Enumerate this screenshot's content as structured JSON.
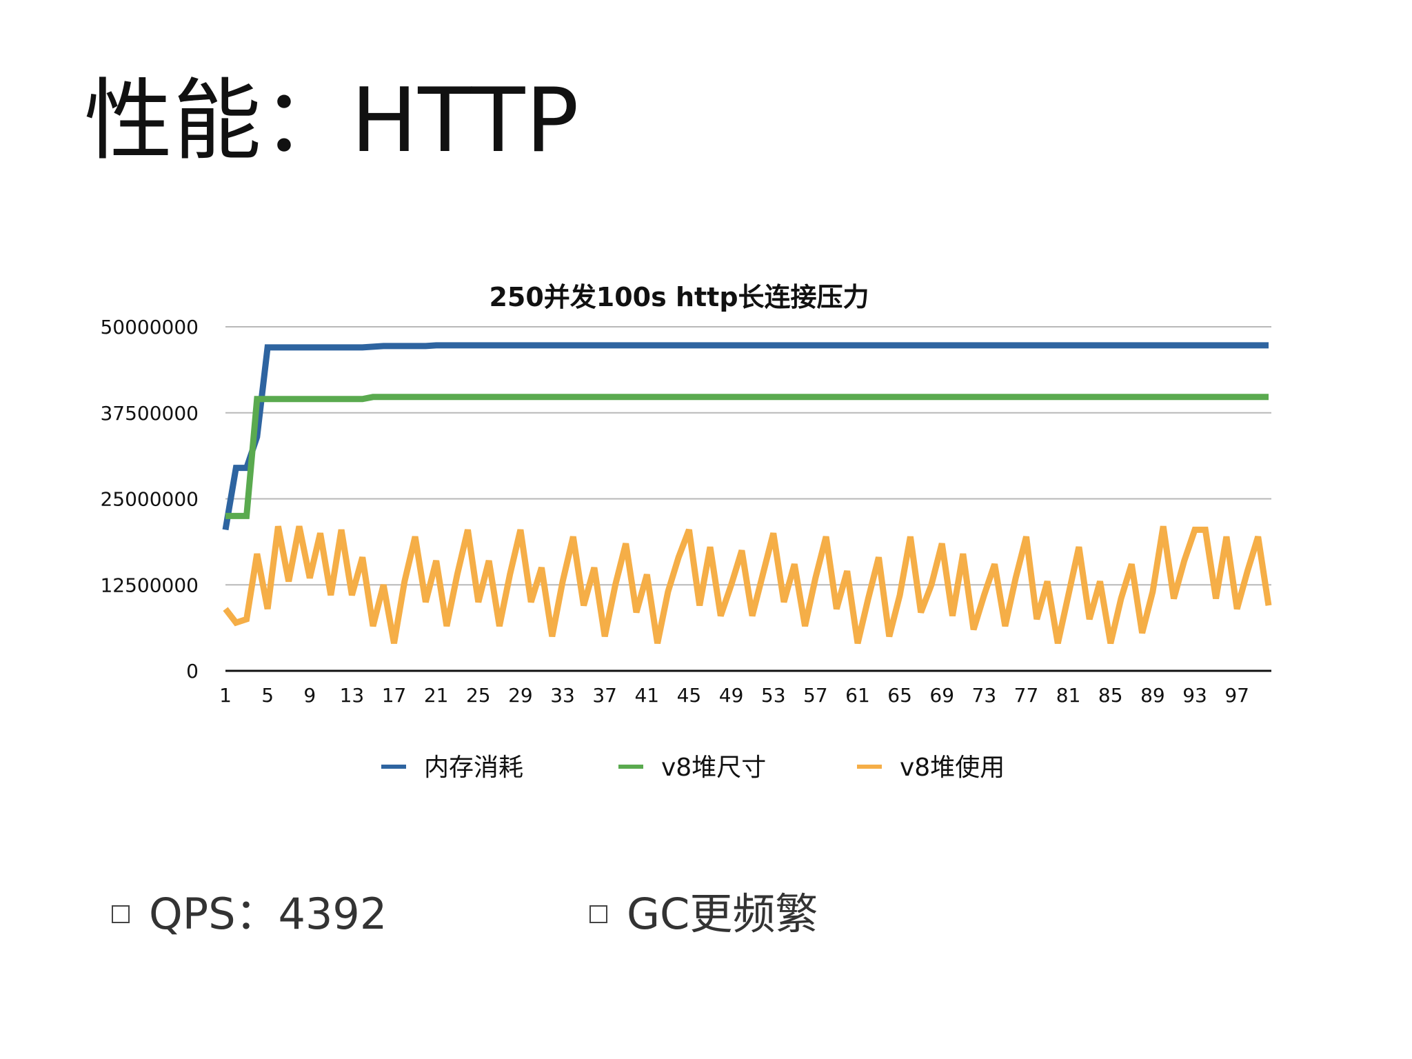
{
  "slide": {
    "title": "性能：HTTP",
    "bullets": [
      {
        "text": "QPS：4392"
      },
      {
        "text": "GC更频繁"
      }
    ]
  },
  "chart_data": {
    "type": "line",
    "title": "250并发100s http长连接压力",
    "xlabel": "",
    "ylabel": "",
    "ylim": [
      0,
      50000000
    ],
    "yticks": [
      0,
      12500000,
      25000000,
      37500000,
      50000000
    ],
    "ytick_labels": [
      "0",
      "12500000",
      "25000000",
      "37500000",
      "50000000"
    ],
    "xtick_labels": [
      "1",
      "5",
      "9",
      "13",
      "17",
      "21",
      "25",
      "29",
      "33",
      "37",
      "41",
      "45",
      "49",
      "53",
      "57",
      "61",
      "65",
      "69",
      "73",
      "77",
      "81",
      "85",
      "89",
      "93",
      "97"
    ],
    "grid": true,
    "legend_position": "bottom",
    "x": [
      1,
      2,
      3,
      4,
      5,
      6,
      7,
      8,
      9,
      10,
      11,
      12,
      13,
      14,
      15,
      16,
      17,
      18,
      19,
      20,
      21,
      22,
      23,
      24,
      25,
      26,
      27,
      28,
      29,
      30,
      31,
      32,
      33,
      34,
      35,
      36,
      37,
      38,
      39,
      40,
      41,
      42,
      43,
      44,
      45,
      46,
      47,
      48,
      49,
      50,
      51,
      52,
      53,
      54,
      55,
      56,
      57,
      58,
      59,
      60,
      61,
      62,
      63,
      64,
      65,
      66,
      67,
      68,
      69,
      70,
      71,
      72,
      73,
      74,
      75,
      76,
      77,
      78,
      79,
      80,
      81,
      82,
      83,
      84,
      85,
      86,
      87,
      88,
      89,
      90,
      91,
      92,
      93,
      93,
      94,
      95,
      96,
      97,
      98,
      99,
      100
    ],
    "series": [
      {
        "name": "内存消耗",
        "color": "#2e64a0",
        "values": [
          20500000,
          29500000,
          29500000,
          34000000,
          47000000,
          47000000,
          47000000,
          47000000,
          47000000,
          47000000,
          47000000,
          47000000,
          47000000,
          47000000,
          47100000,
          47200000,
          47200000,
          47200000,
          47200000,
          47200000,
          47300000,
          47300000,
          47300000,
          47300000,
          47300000,
          47300000,
          47300000,
          47300000,
          47300000,
          47300000,
          47300000,
          47300000,
          47300000,
          47300000,
          47300000,
          47300000,
          47300000,
          47300000,
          47300000,
          47300000,
          47300000,
          47300000,
          47300000,
          47300000,
          47300000,
          47300000,
          47300000,
          47300000,
          47300000,
          47300000,
          47300000,
          47300000,
          47300000,
          47300000,
          47300000,
          47300000,
          47300000,
          47300000,
          47300000,
          47300000,
          47300000,
          47300000,
          47300000,
          47300000,
          47300000,
          47300000,
          47300000,
          47300000,
          47300000,
          47300000,
          47300000,
          47300000,
          47300000,
          47300000,
          47300000,
          47300000,
          47300000,
          47300000,
          47300000,
          47300000,
          47300000,
          47300000,
          47300000,
          47300000,
          47300000,
          47300000,
          47300000,
          47300000,
          47300000,
          47300000,
          47300000,
          47300000,
          47300000,
          47300000,
          47300000,
          47300000,
          47300000,
          47300000,
          47300000,
          47300000,
          47300000
        ]
      },
      {
        "name": "v8堆尺寸",
        "color": "#5aaa4f",
        "values": [
          22500000,
          22500000,
          22500000,
          39500000,
          39500000,
          39500000,
          39500000,
          39500000,
          39500000,
          39500000,
          39500000,
          39500000,
          39500000,
          39500000,
          39800000,
          39800000,
          39800000,
          39800000,
          39800000,
          39800000,
          39800000,
          39800000,
          39800000,
          39800000,
          39800000,
          39800000,
          39800000,
          39800000,
          39800000,
          39800000,
          39800000,
          39800000,
          39800000,
          39800000,
          39800000,
          39800000,
          39800000,
          39800000,
          39800000,
          39800000,
          39800000,
          39800000,
          39800000,
          39800000,
          39800000,
          39800000,
          39800000,
          39800000,
          39800000,
          39800000,
          39800000,
          39800000,
          39800000,
          39800000,
          39800000,
          39800000,
          39800000,
          39800000,
          39800000,
          39800000,
          39800000,
          39800000,
          39800000,
          39800000,
          39800000,
          39800000,
          39800000,
          39800000,
          39800000,
          39800000,
          39800000,
          39800000,
          39800000,
          39800000,
          39800000,
          39800000,
          39800000,
          39800000,
          39800000,
          39800000,
          39800000,
          39800000,
          39800000,
          39800000,
          39800000,
          39800000,
          39800000,
          39800000,
          39800000,
          39800000,
          39800000,
          39800000,
          39800000,
          39800000,
          39800000,
          39800000,
          39800000,
          39800000,
          39800000,
          39800000,
          39800000
        ]
      },
      {
        "name": "v8堆使用",
        "color": "#f5ae47",
        "values": [
          9000000,
          7000000,
          7500000,
          17000000,
          9000000,
          21000000,
          13000000,
          21000000,
          13500000,
          20000000,
          11000000,
          20500000,
          11000000,
          16500000,
          6500000,
          12500000,
          4000000,
          13000000,
          19500000,
          10000000,
          16000000,
          6500000,
          14000000,
          20500000,
          10000000,
          16000000,
          6500000,
          14000000,
          20500000,
          10000000,
          15000000,
          5000000,
          13000000,
          19500000,
          9500000,
          15000000,
          5000000,
          12500000,
          18500000,
          8500000,
          14000000,
          4000000,
          11500000,
          16500000,
          20500000,
          9500000,
          18000000,
          8000000,
          12500000,
          17500000,
          8000000,
          14000000,
          20000000,
          10000000,
          15500000,
          6500000,
          13500000,
          19500000,
          9000000,
          14500000,
          4000000,
          10500000,
          16500000,
          5000000,
          11000000,
          19500000,
          8500000,
          12500000,
          18500000,
          8000000,
          17000000,
          6000000,
          11000000,
          15500000,
          6500000,
          13500000,
          19500000,
          7500000,
          13000000,
          4000000,
          11000000,
          18000000,
          7500000,
          13000000,
          4000000,
          10500000,
          15500000,
          5500000,
          11500000,
          21000000,
          10500000,
          16000000,
          20500000,
          20500000,
          10500000,
          19500000,
          9000000,
          14500000,
          19500000,
          9500000,
          12500000
        ]
      }
    ]
  }
}
